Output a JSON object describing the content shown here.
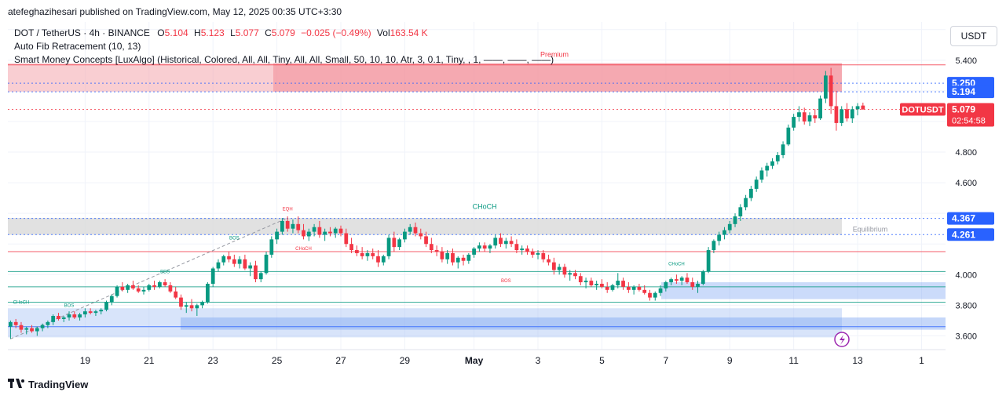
{
  "header": {
    "published": "atefeghazihesari published on TradingView.com, May 12, 2025 00:35 UTC+3:30"
  },
  "legend": {
    "symbol": "DOT / TetherUS · 4h · BINANCE",
    "o_label": "O",
    "o_value": "5.104",
    "h_label": "H",
    "h_value": "5.123",
    "l_label": "L",
    "l_value": "5.077",
    "c_label": "C",
    "c_value": "5.079",
    "change": "−0.025 (−0.49%)",
    "vol_label": "Vol",
    "vol_value": "163.54 K",
    "indicator1": "Auto Fib Retracement (10, 13)",
    "indicator2": "Smart Money Concepts [LuxAlgo] (Historical, Colored, All, All, Tiny, All, All, Small, 50, 10, 10, Atr, 3, 0.1, Tiny, , 1, ——, ——, ——)"
  },
  "currency_button": "USDT",
  "footer": {
    "brand": "TradingView"
  },
  "colors": {
    "up": "#089981",
    "down": "#f23645",
    "premium": "#f4a6ad",
    "discount": "#a9c4f5",
    "equilibrium": "#d9d9d9",
    "fib_blue": "#2962ff"
  },
  "chart_data": {
    "type": "candlestick",
    "symbol": "DOTUSDT",
    "timeframe": "4h",
    "y_ticks": [
      3.6,
      3.8,
      4.0,
      4.2,
      4.4,
      4.6,
      4.8,
      5.0,
      5.2,
      5.4,
      5.6
    ],
    "y_tick_labels": [
      "3.600",
      "3.800",
      "4.000",
      "",
      "",
      "4.600",
      "4.800",
      "",
      "",
      "5.400",
      ""
    ],
    "ylim": [
      3.51,
      5.65
    ],
    "x_ticks": [
      "19",
      "21",
      "23",
      "25",
      "27",
      "29",
      "May",
      "3",
      "5",
      "7",
      "9",
      "11",
      "13",
      "1"
    ],
    "x_tick_index": [
      14,
      26,
      38,
      50,
      62,
      74,
      87,
      99,
      111,
      123,
      135,
      147,
      159,
      171
    ],
    "price_labels": [
      {
        "text": "5.250",
        "value": 5.25,
        "color": "#2962ff"
      },
      {
        "text": "5.194",
        "value": 5.194,
        "color": "#2962ff"
      },
      {
        "text": "5.079",
        "value": 5.079,
        "color": "#f23645",
        "symbol": "DOTUSDT",
        "timer": "02:54:58"
      },
      {
        "text": "4.367",
        "value": 4.367,
        "color": "#2962ff"
      },
      {
        "text": "4.261",
        "value": 4.261,
        "color": "#2962ff"
      }
    ],
    "zones": [
      {
        "name": "Premium",
        "from": 5.195,
        "to": 5.38,
        "label": "Premium"
      },
      {
        "name": "Equilibrium",
        "from": 4.26,
        "to": 4.37,
        "label": "Equilibrium"
      },
      {
        "name": "Discount",
        "from": 3.59,
        "to": 3.78
      }
    ],
    "annotations": [
      {
        "text": "CHoCH",
        "x": 2,
        "y": 3.81,
        "color": "#089981"
      },
      {
        "text": "BOS",
        "x": 11,
        "y": 3.79,
        "color": "#089981"
      },
      {
        "text": "BBS",
        "x": 29,
        "y": 4.01,
        "color": "#089981"
      },
      {
        "text": "BOS",
        "x": 42,
        "y": 4.23,
        "color": "#089981"
      },
      {
        "text": "EQH",
        "x": 52,
        "y": 4.42,
        "color": "#f23645"
      },
      {
        "text": "CHoCH",
        "x": 55,
        "y": 4.16,
        "color": "#f23645"
      },
      {
        "text": "CHoCH",
        "x": 89,
        "y": 4.43,
        "color": "#089981"
      },
      {
        "text": "BOS",
        "x": 93,
        "y": 3.95,
        "color": "#f23645"
      },
      {
        "text": "CHoCH",
        "x": 125,
        "y": 4.06,
        "color": "#089981"
      }
    ],
    "candles": [
      [
        3.66,
        3.7,
        3.58,
        3.69
      ],
      [
        3.69,
        3.71,
        3.65,
        3.67
      ],
      [
        3.67,
        3.69,
        3.62,
        3.64
      ],
      [
        3.64,
        3.66,
        3.61,
        3.65
      ],
      [
        3.65,
        3.67,
        3.62,
        3.63
      ],
      [
        3.63,
        3.66,
        3.6,
        3.65
      ],
      [
        3.65,
        3.68,
        3.63,
        3.67
      ],
      [
        3.67,
        3.7,
        3.65,
        3.69
      ],
      [
        3.69,
        3.74,
        3.67,
        3.73
      ],
      [
        3.73,
        3.75,
        3.7,
        3.71
      ],
      [
        3.71,
        3.73,
        3.69,
        3.72
      ],
      [
        3.72,
        3.76,
        3.7,
        3.74
      ],
      [
        3.74,
        3.76,
        3.71,
        3.72
      ],
      [
        3.72,
        3.75,
        3.7,
        3.74
      ],
      [
        3.74,
        3.78,
        3.72,
        3.76
      ],
      [
        3.76,
        3.78,
        3.74,
        3.75
      ],
      [
        3.75,
        3.77,
        3.73,
        3.76
      ],
      [
        3.76,
        3.78,
        3.74,
        3.77
      ],
      [
        3.77,
        3.83,
        3.76,
        3.82
      ],
      [
        3.82,
        3.87,
        3.8,
        3.86
      ],
      [
        3.86,
        3.93,
        3.85,
        3.92
      ],
      [
        3.92,
        3.95,
        3.89,
        3.9
      ],
      [
        3.9,
        3.94,
        3.88,
        3.93
      ],
      [
        3.93,
        3.96,
        3.9,
        3.91
      ],
      [
        3.91,
        3.93,
        3.88,
        3.89
      ],
      [
        3.89,
        3.92,
        3.87,
        3.9
      ],
      [
        3.9,
        3.94,
        3.89,
        3.93
      ],
      [
        3.93,
        3.96,
        3.9,
        3.92
      ],
      [
        3.92,
        3.96,
        3.91,
        3.95
      ],
      [
        3.95,
        3.97,
        3.92,
        3.93
      ],
      [
        3.93,
        3.95,
        3.88,
        3.89
      ],
      [
        3.89,
        3.92,
        3.84,
        3.85
      ],
      [
        3.85,
        3.87,
        3.77,
        3.79
      ],
      [
        3.79,
        3.82,
        3.75,
        3.8
      ],
      [
        3.8,
        3.84,
        3.76,
        3.78
      ],
      [
        3.78,
        3.81,
        3.73,
        3.8
      ],
      [
        3.8,
        3.83,
        3.78,
        3.82
      ],
      [
        3.82,
        3.95,
        3.81,
        3.94
      ],
      [
        3.94,
        4.05,
        3.92,
        4.04
      ],
      [
        4.04,
        4.1,
        4.02,
        4.08
      ],
      [
        4.08,
        4.13,
        4.06,
        4.12
      ],
      [
        4.12,
        4.15,
        4.08,
        4.1
      ],
      [
        4.1,
        4.13,
        4.05,
        4.07
      ],
      [
        4.07,
        4.12,
        4.04,
        4.1
      ],
      [
        4.1,
        4.13,
        4.03,
        4.04
      ],
      [
        4.04,
        4.08,
        3.99,
        4.06
      ],
      [
        4.06,
        4.09,
        3.95,
        3.97
      ],
      [
        3.97,
        4.02,
        3.95,
        4.01
      ],
      [
        4.01,
        4.15,
        4.0,
        4.13
      ],
      [
        4.13,
        4.25,
        4.11,
        4.23
      ],
      [
        4.23,
        4.3,
        4.2,
        4.28
      ],
      [
        4.28,
        4.37,
        4.26,
        4.35
      ],
      [
        4.35,
        4.38,
        4.28,
        4.3
      ],
      [
        4.3,
        4.36,
        4.27,
        4.33
      ],
      [
        4.33,
        4.38,
        4.27,
        4.29
      ],
      [
        4.29,
        4.33,
        4.23,
        4.25
      ],
      [
        4.25,
        4.3,
        4.22,
        4.28
      ],
      [
        4.28,
        4.33,
        4.25,
        4.31
      ],
      [
        4.31,
        4.35,
        4.24,
        4.26
      ],
      [
        4.26,
        4.3,
        4.22,
        4.28
      ],
      [
        4.28,
        4.31,
        4.25,
        4.27
      ],
      [
        4.27,
        4.31,
        4.24,
        4.3
      ],
      [
        4.3,
        4.32,
        4.25,
        4.27
      ],
      [
        4.27,
        4.3,
        4.18,
        4.2
      ],
      [
        4.2,
        4.24,
        4.14,
        4.16
      ],
      [
        4.16,
        4.19,
        4.12,
        4.14
      ],
      [
        4.14,
        4.18,
        4.1,
        4.12
      ],
      [
        4.12,
        4.16,
        4.09,
        4.14
      ],
      [
        4.14,
        4.17,
        4.1,
        4.12
      ],
      [
        4.12,
        4.16,
        4.05,
        4.08
      ],
      [
        4.08,
        4.13,
        4.06,
        4.12
      ],
      [
        4.12,
        4.26,
        4.1,
        4.24
      ],
      [
        4.24,
        4.28,
        4.15,
        4.18
      ],
      [
        4.18,
        4.24,
        4.16,
        4.23
      ],
      [
        4.23,
        4.3,
        4.21,
        4.28
      ],
      [
        4.28,
        4.33,
        4.26,
        4.31
      ],
      [
        4.31,
        4.34,
        4.25,
        4.27
      ],
      [
        4.27,
        4.3,
        4.23,
        4.25
      ],
      [
        4.25,
        4.28,
        4.18,
        4.2
      ],
      [
        4.2,
        4.24,
        4.14,
        4.16
      ],
      [
        4.16,
        4.19,
        4.12,
        4.15
      ],
      [
        4.15,
        4.18,
        4.08,
        4.1
      ],
      [
        4.1,
        4.16,
        4.07,
        4.14
      ],
      [
        4.14,
        4.17,
        4.06,
        4.08
      ],
      [
        4.08,
        4.12,
        4.04,
        4.11
      ],
      [
        4.11,
        4.13,
        4.06,
        4.09
      ],
      [
        4.09,
        4.14,
        4.07,
        4.13
      ],
      [
        4.13,
        4.18,
        4.11,
        4.17
      ],
      [
        4.17,
        4.21,
        4.15,
        4.19
      ],
      [
        4.19,
        4.21,
        4.15,
        4.17
      ],
      [
        4.17,
        4.2,
        4.14,
        4.19
      ],
      [
        4.19,
        4.26,
        4.17,
        4.24
      ],
      [
        4.24,
        4.27,
        4.18,
        4.2
      ],
      [
        4.2,
        4.24,
        4.17,
        4.22
      ],
      [
        4.22,
        4.25,
        4.18,
        4.2
      ],
      [
        4.2,
        4.23,
        4.14,
        4.16
      ],
      [
        4.16,
        4.19,
        4.13,
        4.17
      ],
      [
        4.17,
        4.19,
        4.13,
        4.15
      ],
      [
        4.15,
        4.17,
        4.11,
        4.13
      ],
      [
        4.13,
        4.16,
        4.1,
        4.14
      ],
      [
        4.14,
        4.16,
        4.08,
        4.1
      ],
      [
        4.1,
        4.13,
        4.06,
        4.08
      ],
      [
        4.08,
        4.11,
        4.0,
        4.03
      ],
      [
        4.03,
        4.07,
        4.0,
        4.05
      ],
      [
        4.05,
        4.07,
        3.98,
        4.0
      ],
      [
        4.0,
        4.03,
        3.96,
        4.01
      ],
      [
        4.01,
        4.03,
        3.97,
        3.99
      ],
      [
        3.99,
        4.01,
        3.93,
        3.95
      ],
      [
        3.95,
        3.98,
        3.91,
        3.96
      ],
      [
        3.96,
        3.98,
        3.92,
        3.93
      ],
      [
        3.93,
        3.96,
        3.9,
        3.94
      ],
      [
        3.94,
        3.97,
        3.91,
        3.92
      ],
      [
        3.92,
        3.95,
        3.88,
        3.9
      ],
      [
        3.9,
        3.94,
        3.89,
        3.93
      ],
      [
        3.93,
        4.01,
        3.91,
        3.96
      ],
      [
        3.96,
        3.98,
        3.9,
        3.92
      ],
      [
        3.92,
        3.95,
        3.88,
        3.9
      ],
      [
        3.9,
        3.93,
        3.87,
        3.92
      ],
      [
        3.92,
        3.94,
        3.89,
        3.9
      ],
      [
        3.9,
        3.93,
        3.87,
        3.88
      ],
      [
        3.88,
        3.9,
        3.83,
        3.85
      ],
      [
        3.85,
        3.89,
        3.83,
        3.88
      ],
      [
        3.88,
        3.93,
        3.86,
        3.91
      ],
      [
        3.91,
        3.96,
        3.89,
        3.95
      ],
      [
        3.95,
        3.98,
        3.93,
        3.97
      ],
      [
        3.97,
        4.0,
        3.94,
        3.96
      ],
      [
        3.96,
        3.99,
        3.93,
        3.98
      ],
      [
        3.98,
        4.01,
        3.94,
        3.95
      ],
      [
        3.95,
        3.98,
        3.9,
        3.92
      ],
      [
        3.92,
        3.96,
        3.88,
        3.94
      ],
      [
        3.94,
        4.03,
        3.93,
        4.02
      ],
      [
        4.02,
        4.18,
        4.01,
        4.16
      ],
      [
        4.16,
        4.23,
        4.14,
        4.22
      ],
      [
        4.22,
        4.28,
        4.19,
        4.26
      ],
      [
        4.26,
        4.31,
        4.23,
        4.29
      ],
      [
        4.29,
        4.35,
        4.27,
        4.33
      ],
      [
        4.33,
        4.4,
        4.31,
        4.38
      ],
      [
        4.38,
        4.46,
        4.35,
        4.44
      ],
      [
        4.44,
        4.52,
        4.42,
        4.5
      ],
      [
        4.5,
        4.58,
        4.48,
        4.56
      ],
      [
        4.56,
        4.64,
        4.54,
        4.62
      ],
      [
        4.62,
        4.7,
        4.6,
        4.68
      ],
      [
        4.68,
        4.73,
        4.64,
        4.71
      ],
      [
        4.71,
        4.76,
        4.69,
        4.74
      ],
      [
        4.74,
        4.8,
        4.72,
        4.78
      ],
      [
        4.78,
        4.87,
        4.76,
        4.85
      ],
      [
        4.85,
        4.98,
        4.84,
        4.96
      ],
      [
        4.96,
        5.05,
        4.94,
        5.03
      ],
      [
        5.03,
        5.1,
        5.0,
        5.06
      ],
      [
        5.06,
        5.09,
        4.98,
        5.0
      ],
      [
        5.0,
        5.06,
        4.97,
        5.04
      ],
      [
        5.04,
        5.08,
        4.99,
        5.02
      ],
      [
        5.02,
        5.17,
        5.01,
        5.15
      ],
      [
        5.15,
        5.33,
        5.12,
        5.3
      ],
      [
        5.3,
        5.35,
        5.05,
        5.1
      ],
      [
        5.1,
        5.2,
        4.94,
        4.99
      ],
      [
        4.99,
        5.1,
        4.97,
        5.08
      ],
      [
        5.08,
        5.12,
        5.0,
        5.02
      ],
      [
        5.02,
        5.1,
        4.99,
        5.08
      ],
      [
        5.08,
        5.12,
        5.04,
        5.1
      ],
      [
        5.104,
        5.123,
        5.077,
        5.079
      ]
    ]
  }
}
